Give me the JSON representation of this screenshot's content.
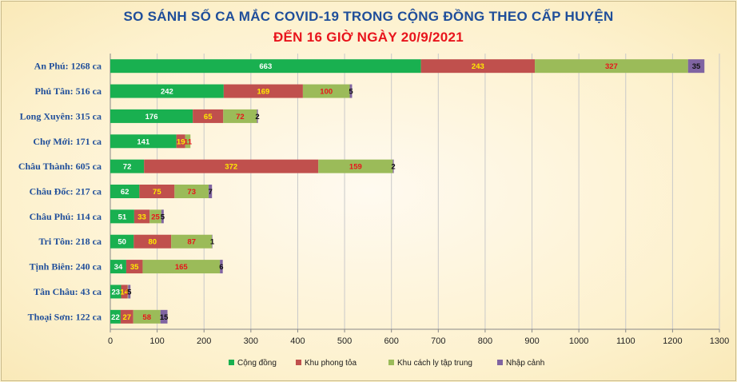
{
  "chart_data": {
    "type": "bar",
    "orientation": "horizontal",
    "stacked": true,
    "title": "SO SÁNH SỐ CA MẮC COVID-19 TRONG CỘNG ĐỒNG THEO CẤP HUYỆN",
    "subtitle": "ĐẾN 16 GIỜ NGÀY 20/9/2021",
    "categories": [
      "An Phú: 1268 ca",
      "Phú Tân: 516 ca",
      "Long Xuyên: 315 ca",
      "Chợ Mới: 171 ca",
      "Châu Thành: 605 ca",
      "Châu Đốc: 217 ca",
      "Châu Phú: 114 ca",
      "Tri Tôn: 218 ca",
      "Tịnh Biên: 240 ca",
      "Tân Châu: 43 ca",
      "Thoại  Sơn: 122 ca"
    ],
    "series": [
      {
        "name": "Cộng đồng",
        "color": "#19b050",
        "label_color": "#ffffff",
        "values": [
          663,
          242,
          176,
          141,
          72,
          62,
          51,
          50,
          34,
          23,
          22
        ]
      },
      {
        "name": "Khu phong tỏa",
        "color": "#c0504d",
        "label_color": "#ffeb00",
        "values": [
          243,
          169,
          65,
          19,
          372,
          75,
          33,
          80,
          35,
          14,
          27
        ]
      },
      {
        "name": "Khu cách ly tập trung",
        "color": "#9bbb59",
        "label_color": "#e8141c",
        "values": [
          327,
          100,
          72,
          11,
          159,
          73,
          25,
          87,
          165,
          1,
          58
        ]
      },
      {
        "name": "Nhập cảnh",
        "color": "#8064a2",
        "label_color": "#111111",
        "values": [
          35,
          5,
          2,
          0,
          2,
          7,
          5,
          1,
          6,
          5,
          15
        ]
      }
    ],
    "data_labels": [
      [
        "663",
        "243",
        "327",
        "35"
      ],
      [
        "242",
        "169",
        "100",
        "5"
      ],
      [
        "176",
        "65",
        "72",
        "2"
      ],
      [
        "141",
        "19",
        "11",
        ""
      ],
      [
        "72",
        "372",
        "159",
        "2"
      ],
      [
        "62",
        "75",
        "73",
        "7"
      ],
      [
        "51",
        "33",
        "25",
        "5"
      ],
      [
        "50",
        "80",
        "87",
        "1"
      ],
      [
        "34",
        "35",
        "165",
        "6"
      ],
      [
        "23",
        "14",
        "1",
        "5"
      ],
      [
        "22",
        "27",
        "58",
        "15"
      ]
    ],
    "x_ticks": [
      "0",
      "100",
      "200",
      "300",
      "400",
      "500",
      "600",
      "700",
      "800",
      "900",
      "1000",
      "1100",
      "1200",
      "1300"
    ],
    "xlim": [
      0,
      1300
    ],
    "grid": "vertical",
    "legend": "bottom-center"
  }
}
